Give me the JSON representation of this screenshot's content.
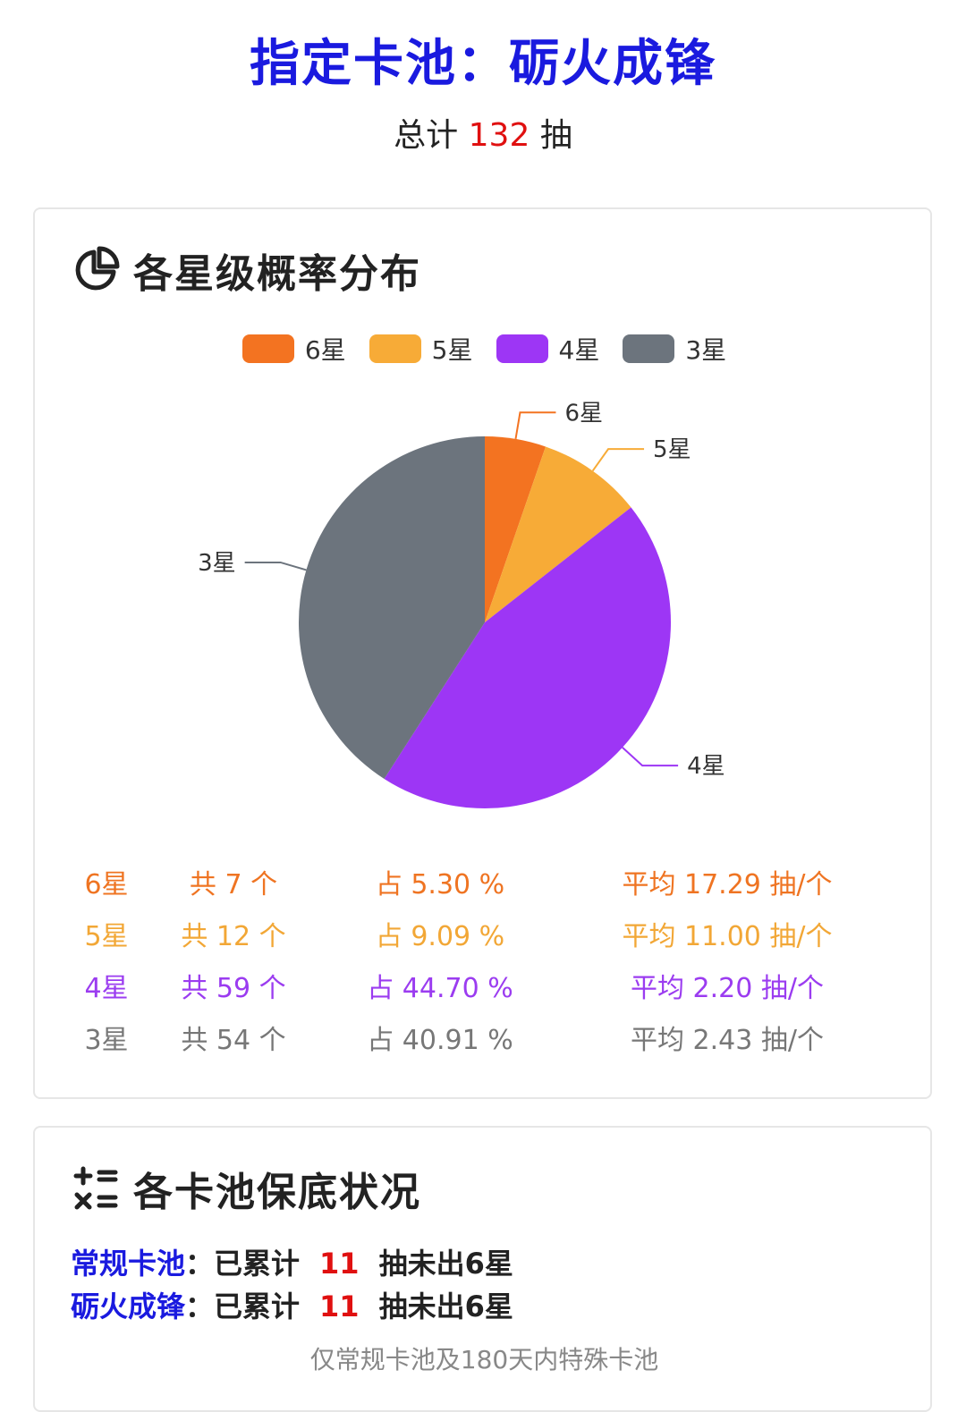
{
  "header": {
    "title": "指定卡池：砺火成锋",
    "total_prefix": "总计",
    "total_count": "132",
    "total_suffix": "抽"
  },
  "distribution": {
    "title": "各星级概率分布",
    "icon": "pie-chart-icon"
  },
  "chart_data": {
    "type": "pie",
    "legend_position": "top",
    "slices": [
      {
        "label": "6星",
        "value": 7,
        "color": "#f37321"
      },
      {
        "label": "5星",
        "value": 12,
        "color": "#f7ab37"
      },
      {
        "label": "4星",
        "value": 59,
        "color": "#9d36f5"
      },
      {
        "label": "3星",
        "value": 54,
        "color": "#6c747d"
      }
    ]
  },
  "stats": [
    {
      "star": "6星",
      "count": "共 7 个",
      "pct": "占 5.30 %",
      "avg": "平均 17.29 抽/个",
      "color": "#ef7422"
    },
    {
      "star": "5星",
      "count": "共 12 个",
      "pct": "占 9.09 %",
      "avg": "平均 11.00 抽/个",
      "color": "#f2a736"
    },
    {
      "star": "4星",
      "count": "共 59 个",
      "pct": "占 44.70 %",
      "avg": "平均 2.20 抽/个",
      "color": "#9b3cf0"
    },
    {
      "star": "3星",
      "count": "共 54 个",
      "pct": "占 40.91 %",
      "avg": "平均 2.43 抽/个",
      "color": "#777777"
    }
  ],
  "pity": {
    "title": "各卡池保底状况",
    "icon": "calculator-icon",
    "rows": [
      {
        "pool": "常规卡池",
        "prefix": "：已累计",
        "count": "11",
        "suffix": "抽未出6星"
      },
      {
        "pool": "砺火成锋",
        "prefix": "：已累计",
        "count": "11",
        "suffix": "抽未出6星"
      }
    ],
    "note": "仅常规卡池及180天内特殊卡池"
  }
}
